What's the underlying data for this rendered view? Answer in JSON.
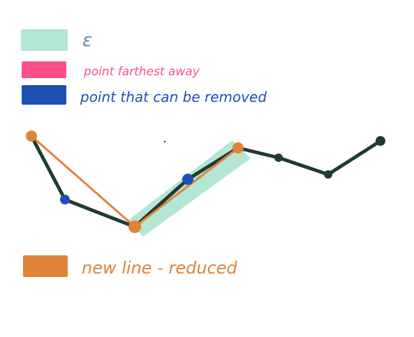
{
  "legend": {
    "epsilon": {
      "label": "ε",
      "swatch_color": "#b3e6d3",
      "text_color": "#5a8fa0"
    },
    "farthest": {
      "label": "point farthest away",
      "swatch_color": "#ff4f86",
      "text_color": "#ff4f86"
    },
    "removable": {
      "label": "point that can be removed",
      "swatch_color": "#1f4fb4",
      "text_color": "#1f4fb4"
    },
    "reduced": {
      "label": "new line - reduced",
      "swatch_color": "#e0823a",
      "text_color": "#e0823a"
    }
  },
  "colors": {
    "polyline": "#1f3b33",
    "reduced_line": "#e0823a",
    "band": "#b3e6d3",
    "removable_point": "#1f4fb4",
    "kept_point": "#e0823a",
    "plain_point": "#1f3b33"
  },
  "diagram": {
    "points": [
      {
        "id": "p1",
        "kind": "kept"
      },
      {
        "id": "p2",
        "kind": "removable"
      },
      {
        "id": "p3",
        "kind": "kept"
      },
      {
        "id": "p4",
        "kind": "removable"
      },
      {
        "id": "p5",
        "kind": "kept"
      },
      {
        "id": "p6",
        "kind": "plain"
      },
      {
        "id": "p7",
        "kind": "plain"
      },
      {
        "id": "p8",
        "kind": "plain"
      }
    ]
  }
}
